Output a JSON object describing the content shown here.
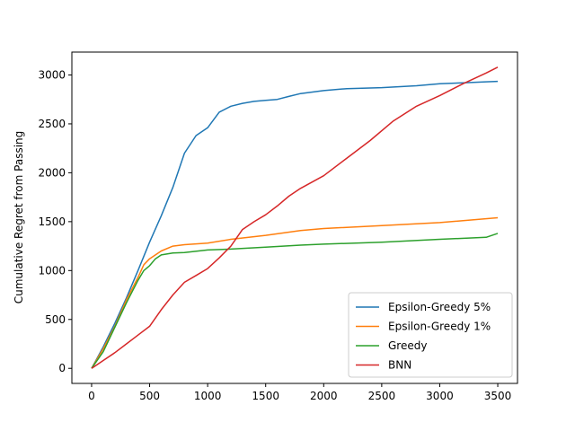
{
  "chart_data": {
    "type": "line",
    "title": "",
    "xlabel": "",
    "ylabel": "Cumulative Regret from Passing",
    "xlim": [
      -170,
      3670
    ],
    "ylim": [
      -154,
      3234
    ],
    "xticks": [
      0,
      500,
      1000,
      1500,
      2000,
      2500,
      3000,
      3500
    ],
    "yticks": [
      0,
      500,
      1000,
      1500,
      2000,
      2500,
      3000
    ],
    "grid": false,
    "legend_position": "lower-right",
    "series": [
      {
        "name": "Epsilon-Greedy 5%",
        "color": "#1f77b4",
        "x": [
          0,
          100,
          200,
          300,
          400,
          500,
          600,
          700,
          800,
          900,
          1000,
          1050,
          1100,
          1200,
          1300,
          1400,
          1500,
          1600,
          1700,
          1800,
          2000,
          2200,
          2500,
          2800,
          3000,
          3200,
          3400,
          3500
        ],
        "y": [
          0,
          220,
          460,
          720,
          1000,
          1290,
          1560,
          1850,
          2200,
          2380,
          2460,
          2540,
          2620,
          2680,
          2710,
          2730,
          2740,
          2750,
          2780,
          2810,
          2840,
          2860,
          2870,
          2890,
          2910,
          2920,
          2930,
          2935
        ]
      },
      {
        "name": "Epsilon-Greedy 1%",
        "color": "#ff7f0e",
        "x": [
          0,
          100,
          200,
          300,
          400,
          450,
          500,
          600,
          700,
          800,
          1000,
          1200,
          1500,
          1800,
          2000,
          2500,
          3000,
          3500
        ],
        "y": [
          0,
          200,
          430,
          700,
          930,
          1060,
          1120,
          1200,
          1250,
          1265,
          1280,
          1320,
          1360,
          1410,
          1430,
          1460,
          1490,
          1540
        ]
      },
      {
        "name": "Greedy",
        "color": "#2ca02c",
        "x": [
          0,
          100,
          200,
          300,
          400,
          450,
          500,
          550,
          600,
          700,
          800,
          1000,
          1200,
          1500,
          1800,
          2000,
          2500,
          3000,
          3400,
          3500
        ],
        "y": [
          0,
          170,
          420,
          670,
          900,
          1000,
          1050,
          1120,
          1160,
          1180,
          1185,
          1210,
          1220,
          1240,
          1260,
          1270,
          1290,
          1320,
          1340,
          1380
        ]
      },
      {
        "name": "BNN",
        "color": "#d62728",
        "x": [
          0,
          100,
          200,
          300,
          400,
          500,
          600,
          700,
          800,
          900,
          1000,
          1100,
          1200,
          1300,
          1400,
          1500,
          1600,
          1700,
          1800,
          2000,
          2200,
          2400,
          2600,
          2800,
          3000,
          3200,
          3400,
          3500
        ],
        "y": [
          0,
          80,
          160,
          250,
          340,
          430,
          600,
          750,
          880,
          950,
          1020,
          1130,
          1250,
          1420,
          1500,
          1570,
          1660,
          1760,
          1840,
          1970,
          2150,
          2330,
          2530,
          2680,
          2790,
          2910,
          3020,
          3080
        ]
      }
    ]
  }
}
